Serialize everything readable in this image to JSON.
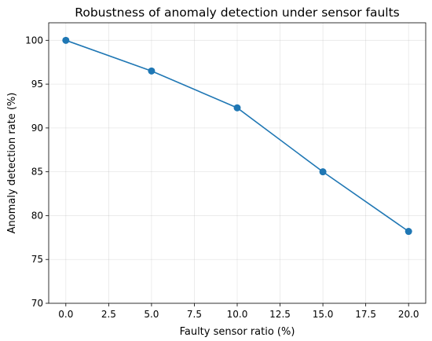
{
  "chart_data": {
    "type": "line",
    "title": "Robustness of anomaly detection under sensor faults",
    "xlabel": "Faulty sensor ratio (%)",
    "ylabel": "Anomaly detection rate (%)",
    "xlim": [
      -1.0,
      21.0
    ],
    "ylim": [
      70,
      102
    ],
    "xticks": [
      "0.0",
      "2.5",
      "5.0",
      "7.5",
      "10.0",
      "12.5",
      "15.0",
      "17.5",
      "20.0"
    ],
    "yticks": [
      "70",
      "75",
      "80",
      "85",
      "90",
      "95",
      "100"
    ],
    "grid": true,
    "series": [
      {
        "color": "#1f77b4",
        "marker": "circle",
        "x": [
          0,
          5,
          10,
          15,
          20
        ],
        "y": [
          100.0,
          96.5,
          92.3,
          85.0,
          78.2
        ]
      }
    ]
  }
}
